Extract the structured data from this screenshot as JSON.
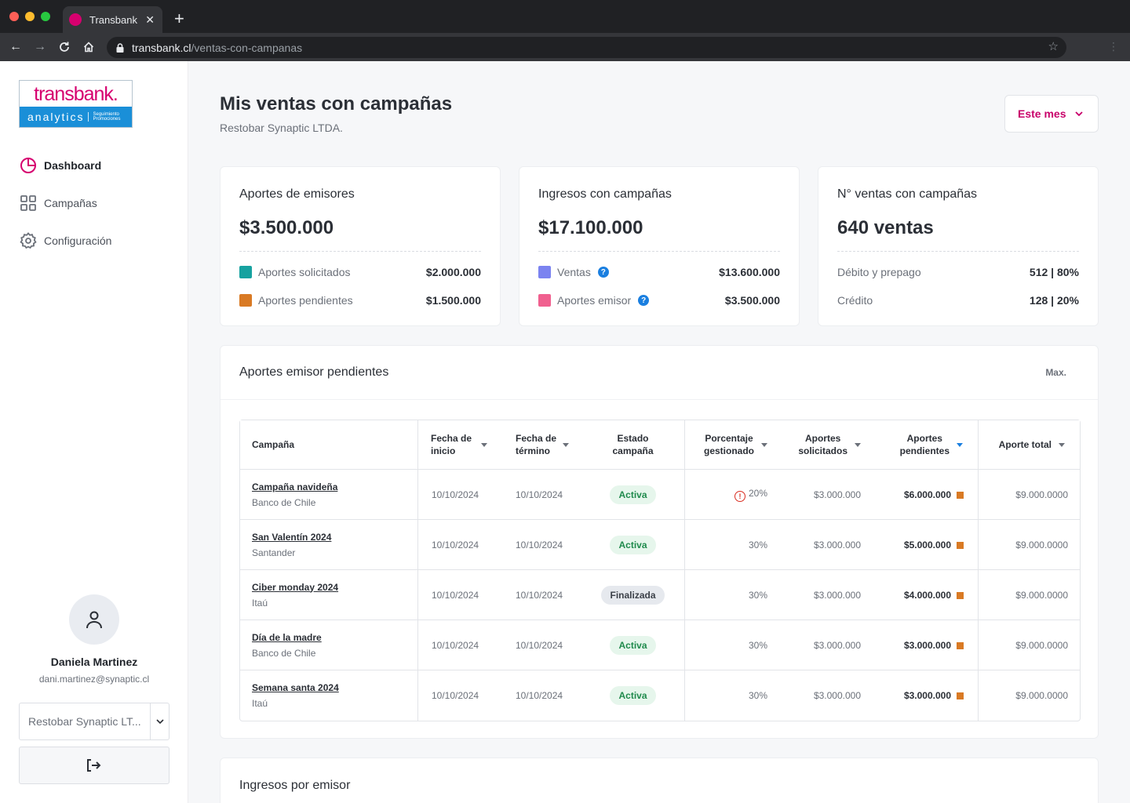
{
  "browser": {
    "tab_title": "Transbank",
    "url_host": "transbank.cl",
    "url_path": "/ventas-con-campanas"
  },
  "sidebar": {
    "logo": {
      "brand": "transbank.",
      "product": "analytics",
      "tagline_1": "Seguimiento",
      "tagline_2": "Promociones"
    },
    "items": [
      {
        "label": "Dashboard",
        "icon": "pie-chart-icon",
        "active": true
      },
      {
        "label": "Campañas",
        "icon": "grid-icon",
        "active": false
      },
      {
        "label": "Configuración",
        "icon": "gear-icon",
        "active": false
      }
    ],
    "user": {
      "name": "Daniela Martinez",
      "email": "dani.martinez@synaptic.cl"
    },
    "org_select": {
      "value": "Restobar Synaptic LT..."
    },
    "logout_icon": "logout-icon"
  },
  "header": {
    "title": "Mis ventas con campañas",
    "subtitle": "Restobar Synaptic LTDA.",
    "period": "Este mes"
  },
  "cards": [
    {
      "title": "Aportes de emisores",
      "value": "$3.500.000",
      "rows": [
        {
          "label": "Aportes solicitados",
          "value": "$2.000.000",
          "color": "#17a2a0",
          "help": false
        },
        {
          "label": "Aportes pendientes",
          "value": "$1.500.000",
          "color": "#d97a24",
          "help": false
        }
      ]
    },
    {
      "title": "Ingresos con campañas",
      "value": "$17.100.000",
      "rows": [
        {
          "label": "Ventas",
          "value": "$13.600.000",
          "color": "#7b83f0",
          "help": true
        },
        {
          "label": "Aportes emisor",
          "value": "$3.500.000",
          "color": "#f0608f",
          "help": true
        }
      ]
    },
    {
      "title": "N° ventas con campañas",
      "value": "640 ventas",
      "rows": [
        {
          "label": "Débito y prepago",
          "value": "512 | 80%"
        },
        {
          "label": "Crédito",
          "value": "128 | 20%"
        }
      ]
    }
  ],
  "pending_panel": {
    "title": "Aportes emisor pendientes",
    "max_label": "Max.",
    "columns": {
      "campaign": "Campaña",
      "start_1": "Fecha de",
      "start_2": "inicio",
      "end_1": "Fecha de",
      "end_2": "término",
      "status_1": "Estado",
      "status_2": "campaña",
      "pct_1": "Porcentaje",
      "pct_2": "gestionado",
      "req_1": "Aportes",
      "req_2": "solicitados",
      "pend_1": "Aportes",
      "pend_2": "pendientes",
      "total": "Aporte total"
    },
    "rows": [
      {
        "name": "Campaña navideña",
        "bank": "Banco de Chile",
        "start": "10/10/2024",
        "end": "10/10/2024",
        "status": "Activa",
        "pct": "20%",
        "warn": true,
        "requested": "$3.000.000",
        "pending": "$6.000.000",
        "total": "$9.000.0000"
      },
      {
        "name": "San Valentín 2024",
        "bank": "Santander",
        "start": "10/10/2024",
        "end": "10/10/2024",
        "status": "Activa",
        "pct": "30%",
        "warn": false,
        "requested": "$3.000.000",
        "pending": "$5.000.000",
        "total": "$9.000.0000"
      },
      {
        "name": "Ciber monday 2024",
        "bank": "Itaú",
        "start": "10/10/2024",
        "end": "10/10/2024",
        "status": "Finalizada",
        "pct": "30%",
        "warn": false,
        "requested": "$3.000.000",
        "pending": "$4.000.000",
        "total": "$9.000.0000"
      },
      {
        "name": "Día de la madre",
        "bank": "Banco de Chile",
        "start": "10/10/2024",
        "end": "10/10/2024",
        "status": "Activa",
        "pct": "30%",
        "warn": false,
        "requested": "$3.000.000",
        "pending": "$3.000.000",
        "total": "$9.000.0000"
      },
      {
        "name": "Semana santa 2024",
        "bank": "Itaú",
        "start": "10/10/2024",
        "end": "10/10/2024",
        "status": "Activa",
        "pct": "30%",
        "warn": false,
        "requested": "$3.000.000",
        "pending": "$3.000.000",
        "total": "$9.000.0000"
      }
    ]
  },
  "income_panel": {
    "title": "Ingresos por emisor"
  }
}
